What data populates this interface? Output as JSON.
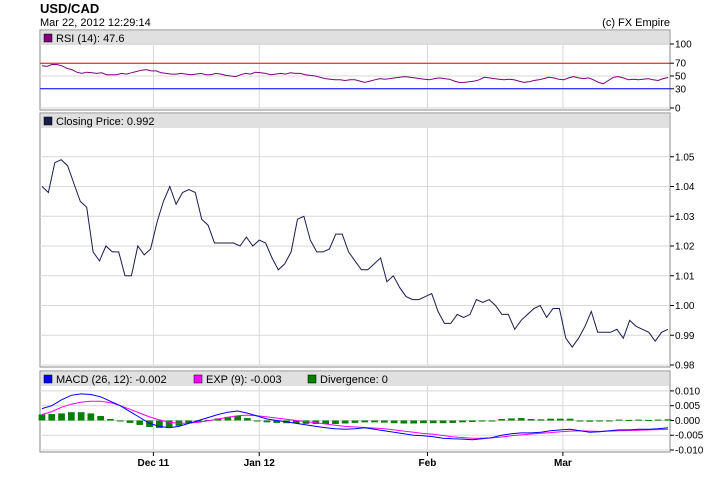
{
  "header": {
    "title": "USD/CAD",
    "timestamp": "Mar 22, 2012 12:29:14",
    "credit": "(c) FX Empire"
  },
  "colors": {
    "rsi": "#800080",
    "closing": "#1a1a4e",
    "macd": "#0000ff",
    "exp": "#ff00ff",
    "divergence": "#008000",
    "rsi_upper": "#ff0000",
    "rsi_lower": "#0000ff",
    "legend_bg": "#e0e0e0",
    "grid": "#d8d8d8"
  },
  "chart_data": [
    {
      "type": "line",
      "name": "rsi-panel",
      "legend": "RSI (14): 47.6",
      "ylim": [
        0,
        100
      ],
      "yticks": [
        0,
        30,
        50,
        70,
        100
      ],
      "levels": [
        70,
        30
      ],
      "values": [
        66,
        65,
        68,
        68,
        66,
        62,
        60,
        56,
        54,
        56,
        55,
        54,
        55,
        52,
        52,
        52,
        54,
        53,
        55,
        57,
        59,
        60,
        58,
        58,
        55,
        54,
        53,
        53,
        54,
        53,
        52,
        53,
        54,
        52,
        52,
        54,
        53,
        51,
        50,
        49,
        52,
        54,
        53,
        56,
        55,
        54,
        52,
        53,
        54,
        53,
        55,
        54,
        54,
        52,
        51,
        50,
        48,
        46,
        45,
        44,
        44,
        43,
        44,
        44,
        42,
        40,
        42,
        44,
        46,
        45,
        46,
        47,
        48,
        49,
        48,
        47,
        46,
        45,
        44,
        46,
        47,
        46,
        45,
        42,
        40,
        40,
        41,
        42,
        44,
        48,
        47,
        46,
        45,
        44,
        45,
        44,
        42,
        40,
        41,
        43,
        44,
        46,
        48,
        47,
        45,
        44,
        47,
        49,
        47,
        46,
        47,
        44,
        40,
        38,
        43,
        48,
        49,
        47,
        44,
        45,
        44,
        45,
        46,
        44,
        43,
        46,
        47.6
      ]
    },
    {
      "type": "line",
      "name": "closing-price-panel",
      "legend": "Closing Price: 0.992",
      "ylim": [
        0.98,
        1.06
      ],
      "yticks": [
        0.98,
        0.99,
        1.0,
        1.01,
        1.02,
        1.03,
        1.04,
        1.05
      ],
      "values": [
        1.04,
        1.038,
        1.048,
        1.049,
        1.047,
        1.041,
        1.035,
        1.033,
        1.018,
        1.015,
        1.02,
        1.018,
        1.018,
        1.01,
        1.01,
        1.02,
        1.017,
        1.019,
        1.028,
        1.035,
        1.04,
        1.034,
        1.038,
        1.039,
        1.038,
        1.029,
        1.027,
        1.021,
        1.021,
        1.021,
        1.021,
        1.02,
        1.023,
        1.02,
        1.022,
        1.021,
        1.016,
        1.012,
        1.014,
        1.018,
        1.029,
        1.03,
        1.022,
        1.018,
        1.018,
        1.019,
        1.024,
        1.024,
        1.018,
        1.015,
        1.012,
        1.012,
        1.014,
        1.016,
        1.008,
        1.01,
        1.006,
        1.003,
        1.002,
        1.002,
        1.003,
        1.004,
        0.998,
        0.994,
        0.994,
        0.997,
        0.996,
        0.997,
        1.002,
        1.001,
        1.002,
        1.0,
        0.997,
        0.997,
        0.992,
        0.995,
        0.997,
        0.999,
        1.0,
        0.996,
        0.999,
        0.999,
        0.989,
        0.986,
        0.989,
        0.993,
        0.998,
        0.991,
        0.991,
        0.991,
        0.992,
        0.989,
        0.995,
        0.993,
        0.992,
        0.991,
        0.988,
        0.991,
        0.992
      ]
    },
    {
      "type": "line",
      "name": "macd-panel",
      "legend_macd": "MACD (26, 12): -0.002",
      "legend_exp": "EXP (9): -0.003",
      "legend_div": "Divergence: 0",
      "ylim": [
        -0.01,
        0.012
      ],
      "yticks": [
        -0.01,
        -0.005,
        0.0,
        0.005,
        0.01
      ],
      "xlabels": [
        {
          "label": "Dec 11",
          "index": 0.18
        },
        {
          "label": "Jan 12",
          "index": 0.348
        },
        {
          "label": "Feb",
          "index": 0.615
        },
        {
          "label": "Mar",
          "index": 0.83
        }
      ],
      "series": [
        {
          "name": "MACD",
          "values": [
            0.004,
            0.005,
            0.007,
            0.0085,
            0.009,
            0.0088,
            0.008,
            0.0065,
            0.005,
            0.003,
            0.001,
            -0.001,
            -0.002,
            -0.0025,
            -0.002,
            -0.001,
            0.0,
            0.001,
            0.002,
            0.0028,
            0.0032,
            0.0025,
            0.0015,
            0.0005,
            0.0,
            -0.0005,
            -0.001,
            -0.0015,
            -0.002,
            -0.0025,
            -0.0028,
            -0.003,
            -0.0028,
            -0.0025,
            -0.003,
            -0.0035,
            -0.004,
            -0.0045,
            -0.005,
            -0.0052,
            -0.0055,
            -0.006,
            -0.0062,
            -0.0063,
            -0.0065,
            -0.0062,
            -0.0058,
            -0.005,
            -0.0045,
            -0.0042,
            -0.0042,
            -0.004,
            -0.0035,
            -0.0032,
            -0.003,
            -0.0035,
            -0.004,
            -0.0038,
            -0.0035,
            -0.0032,
            -0.0032,
            -0.003,
            -0.003,
            -0.0028,
            -0.0025
          ]
        },
        {
          "name": "EXP",
          "values": [
            0.002,
            0.003,
            0.0045,
            0.0055,
            0.0062,
            0.0065,
            0.0065,
            0.006,
            0.005,
            0.0038,
            0.0025,
            0.0012,
            0.0002,
            -0.0006,
            -0.001,
            -0.0009,
            -0.0006,
            -0.0001,
            0.0005,
            0.0011,
            0.0016,
            0.0018,
            0.0016,
            0.0012,
            0.0008,
            0.0004,
            0.0,
            -0.0004,
            -0.0008,
            -0.0012,
            -0.0016,
            -0.002,
            -0.0022,
            -0.0024,
            -0.0026,
            -0.0028,
            -0.0032,
            -0.0036,
            -0.004,
            -0.0044,
            -0.0047,
            -0.0051,
            -0.0055,
            -0.0058,
            -0.006,
            -0.006,
            -0.0059,
            -0.0056,
            -0.0052,
            -0.0049,
            -0.0046,
            -0.0043,
            -0.0041,
            -0.0038,
            -0.0036,
            -0.0035,
            -0.0036,
            -0.0037,
            -0.0036,
            -0.0035,
            -0.0034,
            -0.0033,
            -0.0032,
            -0.0031,
            -0.003
          ]
        }
      ],
      "divergence": [
        0.002,
        0.0022,
        0.0024,
        0.0028,
        0.0028,
        0.0024,
        0.0015,
        0.0005,
        0.0,
        -0.0008,
        -0.0015,
        -0.0022,
        -0.0025,
        -0.0022,
        -0.0018,
        -0.001,
        -0.0006,
        0.0002,
        0.0007,
        0.0012,
        0.0015,
        0.0008,
        0.0,
        -0.0006,
        -0.0008,
        -0.0009,
        -0.001,
        -0.0011,
        -0.0012,
        -0.0012,
        -0.0012,
        -0.001,
        -0.0008,
        -0.0006,
        -0.0006,
        -0.0007,
        -0.0009,
        -0.001,
        -0.001,
        -0.0009,
        -0.0009,
        -0.0009,
        -0.0008,
        -0.0006,
        -0.0005,
        -0.0002,
        0.0,
        0.0005,
        0.0007,
        0.0008,
        0.0005,
        0.0004,
        0.0006,
        0.0006,
        0.0006,
        0.0,
        -0.0004,
        -0.0002,
        0.0,
        0.0003,
        0.0002,
        0.0003,
        0.0002,
        0.0003,
        0.0004
      ]
    }
  ]
}
